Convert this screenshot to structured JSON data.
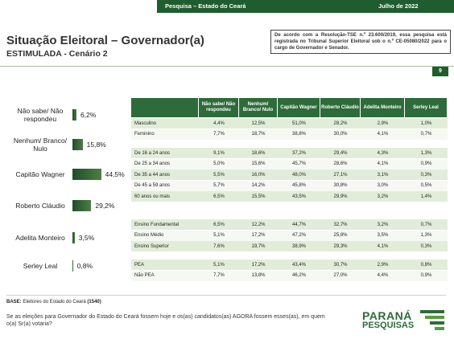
{
  "header": {
    "left": "Pesquisa – Estado do Ceará",
    "right": "Julho de 2022"
  },
  "title": "Situação Eleitoral – Governador(a)",
  "subtitle": "ESTIMULADA - Cenário 2",
  "notice": "De acordo com a Resolução-TSE n.º 23.600/2019, essa pesquisa está registrada no Tribunal Superior Eleitoral sob o n.º CE-05080/2022 para o cargo de Governador e Senador.",
  "page_number": "9",
  "chart_data": {
    "type": "bar",
    "orientation": "horizontal",
    "color": "#1f4d2b",
    "categories": [
      "Não sabe/ Não respondeu",
      "Nenhum/ Branco/ Nulo",
      "Capitão Wagner",
      "Roberto Cláudio",
      "Adelita Monteiro",
      "Serley Leal"
    ],
    "values": [
      6.2,
      15.8,
      44.5,
      29.2,
      3.5,
      0.8
    ],
    "value_labels": [
      "6,2%",
      "15,8%",
      "44,5%",
      "29,2%",
      "3,5%",
      "0,8%"
    ]
  },
  "table": {
    "columns": [
      "Não sabe/ Não respondeu",
      "Nenhum/ Branco/ Nulo",
      "Capitão Wagner",
      "Roberto Cláudio",
      "Adelita Monteiro",
      "Serley Leal"
    ],
    "groups": [
      {
        "rows": [
          [
            "Masculino",
            "4,4%",
            "12,5%",
            "51,0%",
            "28,2%",
            "2,9%",
            "1,0%"
          ],
          [
            "Feminino",
            "7,7%",
            "18,7%",
            "38,8%",
            "30,0%",
            "4,1%",
            "0,7%"
          ]
        ]
      },
      {
        "rows": [
          [
            "De 16 a 24 anos",
            "9,1%",
            "18,6%",
            "37,2%",
            "29,4%",
            "4,3%",
            "1,3%"
          ],
          [
            "De 25 a 34 anos",
            "5,0%",
            "15,6%",
            "45,7%",
            "28,6%",
            "4,1%",
            "0,9%"
          ],
          [
            "De 35 a 44 anos",
            "5,5%",
            "16,0%",
            "48,0%",
            "27,1%",
            "3,1%",
            "0,3%"
          ],
          [
            "De 45 a 59 anos",
            "5,7%",
            "14,2%",
            "45,8%",
            "30,8%",
            "3,0%",
            "0,5%"
          ],
          [
            "60 anos ou mais",
            "6,5%",
            "15,5%",
            "43,5%",
            "29,9%",
            "3,2%",
            "1,4%"
          ]
        ]
      },
      {
        "rows": [
          [
            "Ensino Fundamental",
            "6,5%",
            "12,2%",
            "44,7%",
            "32,7%",
            "3,2%",
            "0,7%"
          ],
          [
            "Ensino Médio",
            "5,1%",
            "17,2%",
            "47,2%",
            "25,8%",
            "3,5%",
            "1,3%"
          ],
          [
            "Ensino Superior",
            "7,6%",
            "19,7%",
            "38,9%",
            "29,3%",
            "4,1%",
            "0,3%"
          ]
        ]
      },
      {
        "rows": [
          [
            "PEA",
            "5,1%",
            "17,2%",
            "43,4%",
            "30,7%",
            "2,9%",
            "0,8%"
          ],
          [
            "Não PEA",
            "7,7%",
            "13,8%",
            "46,2%",
            "27,0%",
            "4,4%",
            "0,9%"
          ]
        ]
      }
    ]
  },
  "base": {
    "label": "BASE:",
    "text": "Eleitores do Estado do Ceará",
    "n": "(1540)"
  },
  "question": "Se as eleições para Governador do Estado do Ceará fossem hoje e os(as) candidatos(as) AGORA fossem esses(as), em quem o(a) Sr(a) votaria?",
  "logo": {
    "line1": "PARANÁ",
    "line2": "PESQUISAS"
  }
}
